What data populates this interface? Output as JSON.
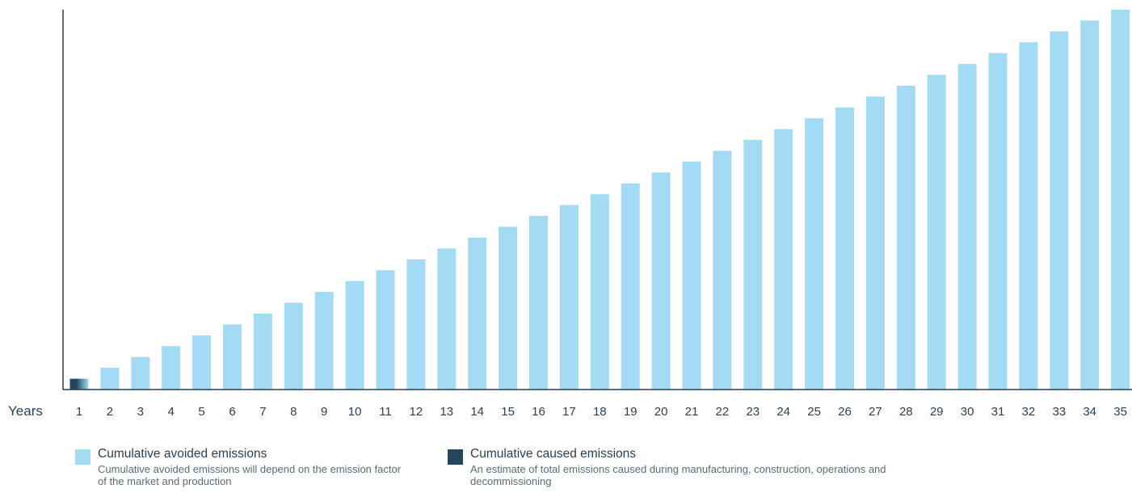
{
  "chart_data": {
    "type": "bar",
    "xlabel": "Years",
    "categories": [
      "1",
      "2",
      "3",
      "4",
      "5",
      "6",
      "7",
      "8",
      "9",
      "10",
      "11",
      "12",
      "13",
      "14",
      "15",
      "16",
      "17",
      "18",
      "19",
      "20",
      "21",
      "22",
      "23",
      "24",
      "25",
      "26",
      "27",
      "28",
      "29",
      "30",
      "31",
      "32",
      "33",
      "34",
      "35"
    ],
    "series": [
      {
        "name": "Cumulative avoided emissions",
        "values": [
          1,
          2,
          3,
          4,
          5,
          6,
          7,
          8,
          9,
          10,
          11,
          12,
          13,
          14,
          15,
          16,
          17,
          18,
          19,
          20,
          21,
          22,
          23,
          24,
          25,
          26,
          27,
          28,
          29,
          30,
          31,
          32,
          33,
          34,
          35
        ]
      },
      {
        "name": "Cumulative caused emissions",
        "values": [
          1,
          1,
          1,
          1,
          1,
          1,
          1,
          1,
          1,
          1,
          1,
          1,
          1,
          1,
          1,
          1,
          1,
          1,
          1,
          1,
          1,
          1,
          1,
          1,
          1,
          1,
          1,
          1,
          1,
          1,
          1,
          1,
          1,
          1,
          1
        ]
      }
    ],
    "ylim": [
      0,
      35
    ],
    "grid": false,
    "colors": {
      "avoided": "#a3dbf5",
      "caused": "#24475e",
      "axis": "#2a3f55",
      "tick_text": "#2a3f55"
    }
  },
  "legend": {
    "avoided": {
      "title": "Cumulative avoided emissions",
      "description": "Cumulative avoided emissions will depend on the emission factor of the market and production"
    },
    "caused": {
      "title": "Cumulative caused emissions",
      "description": "An estimate of total emissions caused during manufacturing, construction, operations and decommissioning"
    }
  }
}
